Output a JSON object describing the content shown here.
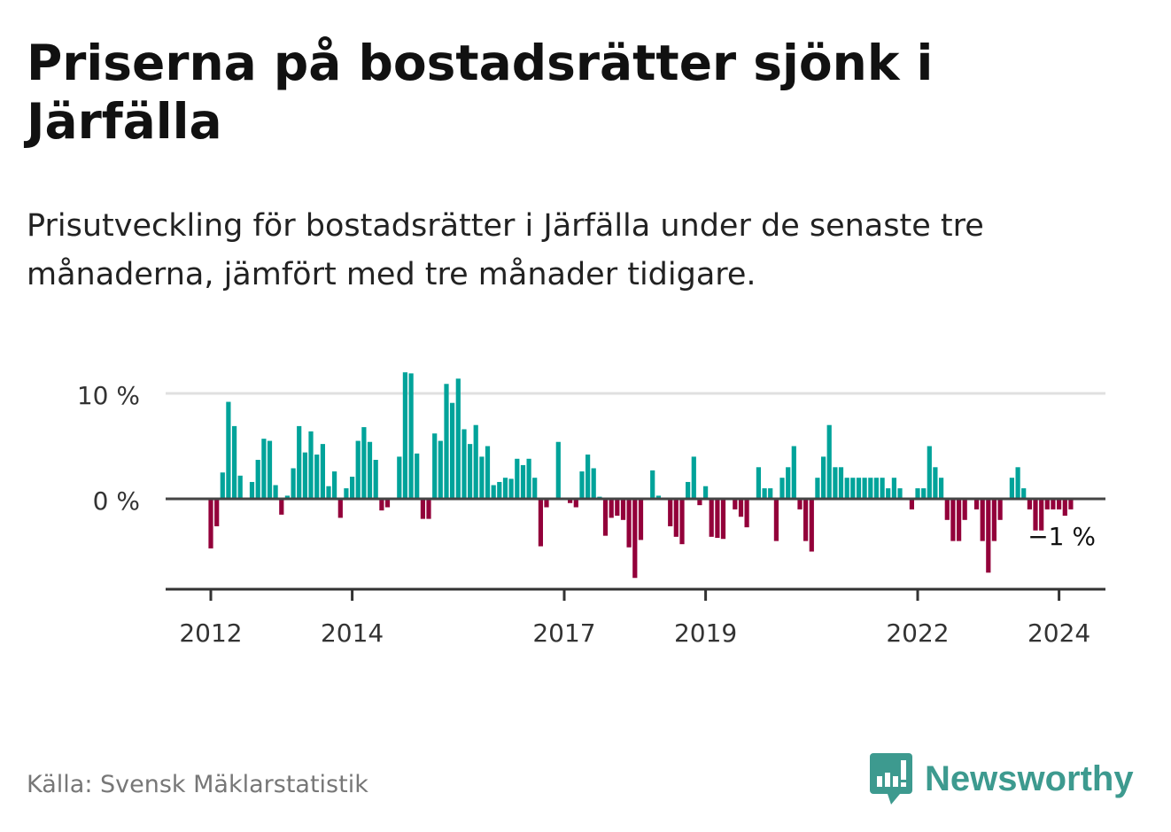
{
  "title": "Priserna på bostadsrätter sjönk i Järfälla",
  "subtitle": "Prisutveckling för bostadsrätter i Järfälla under de senaste tre månaderna, jämfört med tre månader tidigare.",
  "source": "Källa: Svensk Mäklarstatistik",
  "logo": {
    "text": "Newsworthy",
    "icon": "newsworthy-bar-chart-speech-bubble-icon",
    "color": "#3d9a8f"
  },
  "colors": {
    "positive": "#00a39a",
    "negative": "#93003a",
    "zero_line": "#444444",
    "grid": "#e0e0e0"
  },
  "chart_data": {
    "type": "bar",
    "title": "Priserna på bostadsrätter sjönk i Järfälla",
    "xlabel": "",
    "ylabel": "",
    "y_ticks": [
      "0 %",
      "10 %"
    ],
    "y_tick_values": [
      0,
      10
    ],
    "x_ticks": [
      "2012",
      "2014",
      "2017",
      "2019",
      "2022",
      "2024"
    ],
    "x_tick_values": [
      2012.0,
      2014.0,
      2017.0,
      2019.0,
      2022.0,
      2024.0
    ],
    "ylim": [
      -8.5,
      12
    ],
    "start": "2012-01",
    "last_label": "−1 %",
    "values": [
      -4.7,
      -2.6,
      2.5,
      9.2,
      6.9,
      2.2,
      null,
      1.6,
      3.7,
      5.7,
      5.5,
      1.3,
      -1.5,
      0.3,
      2.9,
      6.9,
      4.4,
      6.4,
      4.2,
      5.2,
      1.2,
      2.6,
      -1.8,
      1.0,
      2.1,
      5.5,
      6.8,
      5.4,
      3.7,
      -1.1,
      -0.8,
      null,
      4.0,
      12.0,
      11.9,
      4.3,
      -1.9,
      -1.9,
      6.2,
      5.5,
      10.9,
      9.1,
      11.4,
      6.6,
      5.2,
      7.0,
      4.0,
      5.0,
      1.3,
      1.6,
      2.0,
      1.9,
      3.8,
      3.2,
      3.8,
      2.0,
      -4.5,
      -0.8,
      null,
      5.4,
      null,
      -0.4,
      -0.8,
      2.6,
      4.2,
      2.9,
      0.2,
      -3.5,
      -1.8,
      -1.6,
      -2.0,
      -4.6,
      -7.5,
      -3.9,
      null,
      2.7,
      0.3,
      null,
      -2.6,
      -3.6,
      -4.3,
      1.6,
      4.0,
      -0.6,
      1.2,
      -3.6,
      -3.7,
      -3.8,
      null,
      -1.0,
      -1.7,
      -2.7,
      null,
      3.0,
      1.0,
      1.0,
      -4.0,
      2.0,
      3.0,
      5.0,
      -1.0,
      -4.0,
      -5.0,
      2.0,
      4.0,
      7.0,
      3.0,
      3.0,
      2.0,
      2.0,
      2.0,
      2.0,
      2.0,
      2.0,
      2.0,
      1.0,
      2.0,
      1.0,
      null,
      -1.0,
      1.0,
      1.0,
      5.0,
      3.0,
      2.0,
      -2.0,
      -4.0,
      -4.0,
      -2.0,
      null,
      -1.0,
      -4.0,
      -7.0,
      -4.0,
      -2.0,
      null,
      2.0,
      3.0,
      1.0,
      -1.0,
      -3.0,
      -3.0,
      -1.0,
      -1.0,
      -1.0,
      -1.6,
      -1.0
    ]
  }
}
